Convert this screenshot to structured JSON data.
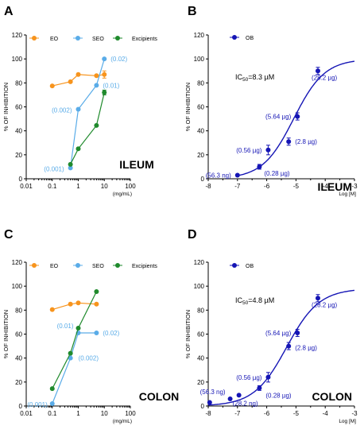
{
  "colors": {
    "EO": "#f7941d",
    "SEO": "#5aace8",
    "Excipients": "#1f8a2c",
    "OB": "#1515b5",
    "text": "#000000"
  },
  "chart_data": [
    {
      "panel": "A",
      "type": "line",
      "xscale": "log",
      "xlim": [
        0.01,
        100
      ],
      "ylim": [
        0,
        120
      ],
      "xticks": [
        "0.01",
        "0.1",
        "1",
        "10",
        "100"
      ],
      "yticks": [
        "0",
        "20",
        "40",
        "60",
        "80",
        "100",
        "120"
      ],
      "ylabel": "% OF INHIBITION",
      "xunit": "(mg/mL)",
      "tissue_label": "ILEUM",
      "series": [
        {
          "name": "EO",
          "color": "EO",
          "points": [
            {
              "x": 0.1,
              "y": 77.5
            },
            {
              "x": 0.5,
              "y": 81
            },
            {
              "x": 1,
              "y": 87
            },
            {
              "x": 5,
              "y": 86
            },
            {
              "x": 10,
              "y": 87,
              "err": 3
            }
          ]
        },
        {
          "name": "SEO",
          "color": "SEO",
          "points": [
            {
              "x": 0.5,
              "y": 9,
              "label": "(0.001)"
            },
            {
              "x": 1,
              "y": 58,
              "label": "(0.002)"
            },
            {
              "x": 5,
              "y": 78,
              "label": "(0.01)"
            },
            {
              "x": 10,
              "y": 100,
              "label": "(0.02)"
            }
          ]
        },
        {
          "name": "Excipients",
          "color": "Excipients",
          "points": [
            {
              "x": 0.5,
              "y": 12
            },
            {
              "x": 1,
              "y": 25
            },
            {
              "x": 5,
              "y": 44.5
            },
            {
              "x": 10,
              "y": 72,
              "err": 2
            }
          ]
        }
      ]
    },
    {
      "panel": "B",
      "type": "scatter",
      "xlim": [
        -8,
        -3
      ],
      "ylim": [
        0,
        120
      ],
      "xticks": [
        "-8",
        "-7",
        "-6",
        "-5",
        "-4",
        "-3"
      ],
      "yticks": [
        "0",
        "20",
        "40",
        "60",
        "80",
        "100",
        "120"
      ],
      "ylabel": "% OF INHIBITION",
      "xunit": "Log [M]",
      "tissue_label": "ILEUM",
      "ic50": {
        "prefix": "IC",
        "sub": "50",
        "suffix": "=8.3 µM"
      },
      "fit": {
        "top": 100,
        "logIC50": -5.08,
        "hill": 0.82
      },
      "series": [
        {
          "name": "OB",
          "color": "OB",
          "points": [
            {
              "x": -7,
              "y": 3,
              "label": "(56.3 ng)"
            },
            {
              "x": -6.25,
              "y": 10,
              "err": 2,
              "label": "(0.28 µg)"
            },
            {
              "x": -5.95,
              "y": 24,
              "err": 4,
              "label": "(0.56 µg)"
            },
            {
              "x": -5.25,
              "y": 31,
              "err": 3,
              "label": "(2.8 µg)"
            },
            {
              "x": -4.95,
              "y": 52,
              "err": 3,
              "label": "(5.64 µg)"
            },
            {
              "x": -4.25,
              "y": 90,
              "err": 3,
              "label": "(28.2 µg)"
            }
          ]
        }
      ]
    },
    {
      "panel": "C",
      "type": "line",
      "xscale": "log",
      "xlim": [
        0.01,
        100
      ],
      "ylim": [
        0,
        120
      ],
      "xticks": [
        "0.01",
        "0.1",
        "1",
        "10",
        "100"
      ],
      "yticks": [
        "0",
        "20",
        "40",
        "60",
        "80",
        "100",
        "120"
      ],
      "ylabel": "% OF INHIBITION",
      "xunit": "(mg/mL)",
      "tissue_label": "COLON",
      "series": [
        {
          "name": "EO",
          "color": "EO",
          "points": [
            {
              "x": 0.1,
              "y": 80.5
            },
            {
              "x": 0.5,
              "y": 85
            },
            {
              "x": 1,
              "y": 86
            },
            {
              "x": 5,
              "y": 85
            }
          ]
        },
        {
          "name": "SEO",
          "color": "SEO",
          "points": [
            {
              "x": 0.1,
              "y": 2,
              "label": "(0.001)"
            },
            {
              "x": 0.5,
              "y": 40,
              "label": "(0.002)"
            },
            {
              "x": 1,
              "y": 61,
              "label": "(0.01)"
            },
            {
              "x": 5,
              "y": 61,
              "label": "(0.02)"
            }
          ]
        },
        {
          "name": "Excipients",
          "color": "Excipients",
          "points": [
            {
              "x": 0.1,
              "y": 14.5
            },
            {
              "x": 0.5,
              "y": 44
            },
            {
              "x": 1,
              "y": 65
            },
            {
              "x": 5,
              "y": 95.5
            }
          ]
        }
      ]
    },
    {
      "panel": "D",
      "type": "scatter",
      "xlim": [
        -8,
        -3
      ],
      "ylim": [
        0,
        120
      ],
      "xticks": [
        "-8",
        "-7",
        "-6",
        "-5",
        "-4",
        "-3"
      ],
      "yticks": [
        "0",
        "20",
        "40",
        "60",
        "80",
        "100",
        "120"
      ],
      "ylabel": "% OF INHIBITION",
      "xunit": "Log [M]",
      "tissue_label": "COLON",
      "ic50": {
        "prefix": "IC",
        "sub": "50",
        "suffix": "=4.8 µM"
      },
      "fit": {
        "top": 98,
        "logIC50": -5.32,
        "hill": 0.78
      },
      "series": [
        {
          "name": "OB",
          "color": "OB",
          "points": [
            {
              "x": -7.95,
              "y": 3
            },
            {
              "x": -7.25,
              "y": 6,
              "label": "(56.3 ng)"
            },
            {
              "x": -6.95,
              "y": 9,
              "label": "(28.2 ng)"
            },
            {
              "x": -6.25,
              "y": 15,
              "err": 2,
              "label": "(0.28 µg)"
            },
            {
              "x": -5.95,
              "y": 24,
              "err": 4,
              "label": "(0.56 µg)"
            },
            {
              "x": -5.25,
              "y": 50,
              "err": 3,
              "label": "(2.8 µg)"
            },
            {
              "x": -4.95,
              "y": 61,
              "err": 3,
              "label": "(5.64 µg)"
            },
            {
              "x": -4.25,
              "y": 90,
              "err": 3,
              "label": "(28.2 µg)"
            }
          ]
        }
      ]
    }
  ]
}
